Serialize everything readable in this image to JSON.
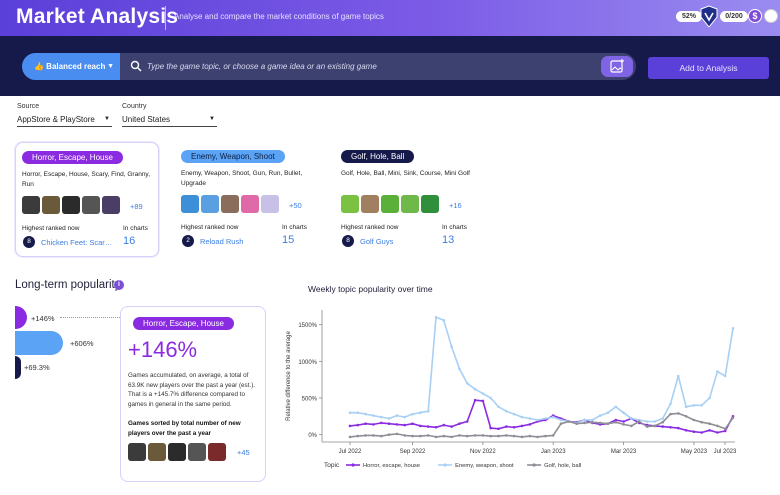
{
  "header": {
    "title": "Market Analysis",
    "subtitle": "Analyse and compare the market conditions of game topics",
    "progress_pct": "52%",
    "quota": "0/200",
    "coin_symbol": "$"
  },
  "search": {
    "reach_label": "👍 Balanced reach",
    "placeholder": "Type the game topic, or choose a game idea or an existing game",
    "add_button": "Add to Analysis"
  },
  "filters": {
    "source_label": "Source",
    "source_value": "AppStore & PlayStore",
    "country_label": "Country",
    "country_value": "United States"
  },
  "topics": [
    {
      "tag": "Horror, Escape, House",
      "keywords": "Horror, Escape, House, Scary, Find, Granny, Run",
      "more": "+89",
      "highest_label": "Highest ranked now",
      "rank": "8",
      "game": "Chicken Feet: Scar…",
      "charts_label": "In charts",
      "charts": "16",
      "thumb_colors": [
        "#3b3b3b",
        "#6a5a3a",
        "#2b2b2b",
        "#555555",
        "#4a3d66"
      ]
    },
    {
      "tag": "Enemy, Weapon, Shoot",
      "keywords": "Enemy, Weapon, Shoot, Gun, Run, Bullet, Upgrade",
      "more": "+50",
      "highest_label": "Highest ranked now",
      "rank": "2",
      "game": "Reload Rush",
      "charts_label": "In charts",
      "charts": "15",
      "thumb_colors": [
        "#3d8fd8",
        "#5aa0e0",
        "#8a6d5a",
        "#e06aa8",
        "#c9c0e8"
      ]
    },
    {
      "tag": "Golf, Hole, Ball",
      "keywords": "Golf, Hole, Ball, Mini, Sink, Course, Mini Golf",
      "more": "+16",
      "highest_label": "Highest ranked now",
      "rank": "8",
      "game": "Golf Guys",
      "charts_label": "In charts",
      "charts": "13",
      "thumb_colors": [
        "#7cc242",
        "#a08060",
        "#5bb03a",
        "#6fb84a",
        "#2f8f3a"
      ]
    }
  ],
  "longterm": {
    "title": "Long-term popularity",
    "info": "i",
    "bars": [
      {
        "label": "+146%",
        "value": 146,
        "color": "#8a2be2"
      },
      {
        "label": "+606%",
        "value": 606,
        "color": "#5aa3f5"
      },
      {
        "label": "+69.3%",
        "value": 69.3,
        "color": "#161a4a"
      }
    ],
    "detail": {
      "tag": "Horror, Escape, House",
      "big": "+146%",
      "desc": "Games accumulated, on average, a total of 63.9K new players over the past a year (est.). That is a +145.7% difference compared to games in general in the same period.",
      "sort_label": "Games sorted by total number of new players over the past a year",
      "more": "+45",
      "thumb_colors": [
        "#3b3b3b",
        "#6a5a3a",
        "#2b2b2b",
        "#555555",
        "#7a2a2a"
      ]
    }
  },
  "chart_data": {
    "type": "line",
    "title": "Weekly topic popularity over time",
    "xlabel": "",
    "ylabel": "Relative difference to the average",
    "x_ticks": [
      "Jul 2022",
      "Sep 2022",
      "Nov 2022",
      "Jan 2023",
      "Mar 2023",
      "May 2023",
      "Jul 2023"
    ],
    "y_ticks": [
      "0%",
      "500%",
      "1000%",
      "1500%"
    ],
    "ylim": [
      -100,
      1700
    ],
    "legend_title": "Topic",
    "legend_position": "bottom",
    "series": [
      {
        "name": "Horror, escape, house",
        "color": "#8a2be2",
        "values": [
          120,
          130,
          150,
          140,
          160,
          150,
          140,
          130,
          150,
          120,
          110,
          100,
          130,
          110,
          150,
          180,
          470,
          460,
          90,
          80,
          110,
          100,
          120,
          140,
          180,
          200,
          260,
          220,
          180,
          170,
          200,
          160,
          140,
          150,
          200,
          180,
          220,
          160,
          130,
          120,
          110,
          100,
          90,
          60,
          40,
          30,
          60,
          30,
          50,
          250
        ]
      },
      {
        "name": "Enemy, weapon, shoot",
        "color": "#a8d0f5",
        "values": [
          300,
          300,
          280,
          260,
          240,
          220,
          260,
          240,
          280,
          300,
          320,
          1600,
          1560,
          1200,
          900,
          700,
          620,
          560,
          500,
          380,
          320,
          280,
          240,
          220,
          200,
          220,
          240,
          200,
          180,
          160,
          200,
          200,
          260,
          300,
          380,
          300,
          220,
          200,
          180,
          180,
          220,
          420,
          800,
          380,
          400,
          400,
          500,
          860,
          800,
          1450
        ]
      },
      {
        "name": "Golf, hole, ball",
        "color": "#8e8e95",
        "values": [
          -30,
          -20,
          -10,
          -10,
          -20,
          0,
          10,
          -10,
          -20,
          -20,
          -10,
          -30,
          -20,
          -30,
          -10,
          -20,
          -10,
          -10,
          -20,
          -20,
          -10,
          -20,
          -30,
          -20,
          -30,
          -20,
          -10,
          150,
          180,
          150,
          160,
          170,
          160,
          150,
          170,
          140,
          120,
          180,
          110,
          120,
          170,
          280,
          290,
          250,
          200,
          170,
          150,
          120,
          80,
          230
        ]
      }
    ]
  }
}
